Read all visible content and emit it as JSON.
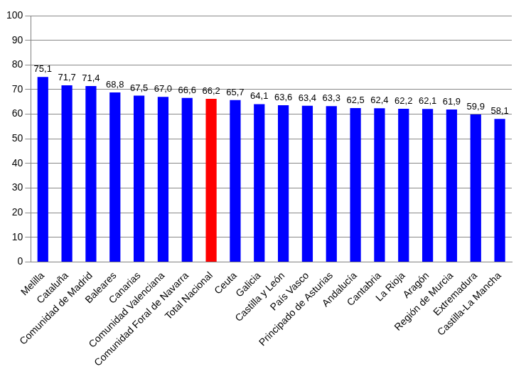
{
  "chart_data": {
    "type": "bar",
    "categories": [
      "Melilla",
      "Cataluña",
      "Comunidad de Madrid",
      "Baleares",
      "Canarias",
      "Comunidad Valenciana",
      "Comunidad Foral de Navarra",
      "Total Nacional",
      "Ceuta",
      "Galicia",
      "Castilla y León",
      "País Vasco",
      "Principado de Asturias",
      "Andalucía",
      "Cantabria",
      "La Rioja",
      "Aragón",
      "Región de Murcia",
      "Extremadura",
      "Castilla-La Mancha"
    ],
    "values": [
      75.1,
      71.7,
      71.4,
      68.8,
      67.5,
      67.0,
      66.6,
      66.2,
      65.7,
      64.1,
      63.6,
      63.4,
      63.3,
      62.5,
      62.4,
      62.2,
      62.1,
      61.9,
      59.9,
      58.1
    ],
    "value_labels": [
      "75,1",
      "71,7",
      "71,4",
      "68,8",
      "67,5",
      "67,0",
      "66,6",
      "66,2",
      "65,7",
      "64,1",
      "63,6",
      "63,4",
      "63,3",
      "62,5",
      "62,4",
      "62,2",
      "62,1",
      "61,9",
      "59,9",
      "58,1"
    ],
    "colors": [
      "#0000ff",
      "#0000ff",
      "#0000ff",
      "#0000ff",
      "#0000ff",
      "#0000ff",
      "#0000ff",
      "#ff0000",
      "#0000ff",
      "#0000ff",
      "#0000ff",
      "#0000ff",
      "#0000ff",
      "#0000ff",
      "#0000ff",
      "#0000ff",
      "#0000ff",
      "#0000ff",
      "#0000ff",
      "#0000ff"
    ],
    "ylim": [
      0,
      100
    ],
    "yticks": [
      0,
      10,
      20,
      30,
      40,
      50,
      60,
      70,
      80,
      90,
      100
    ],
    "grid": true,
    "data_labels": true
  }
}
